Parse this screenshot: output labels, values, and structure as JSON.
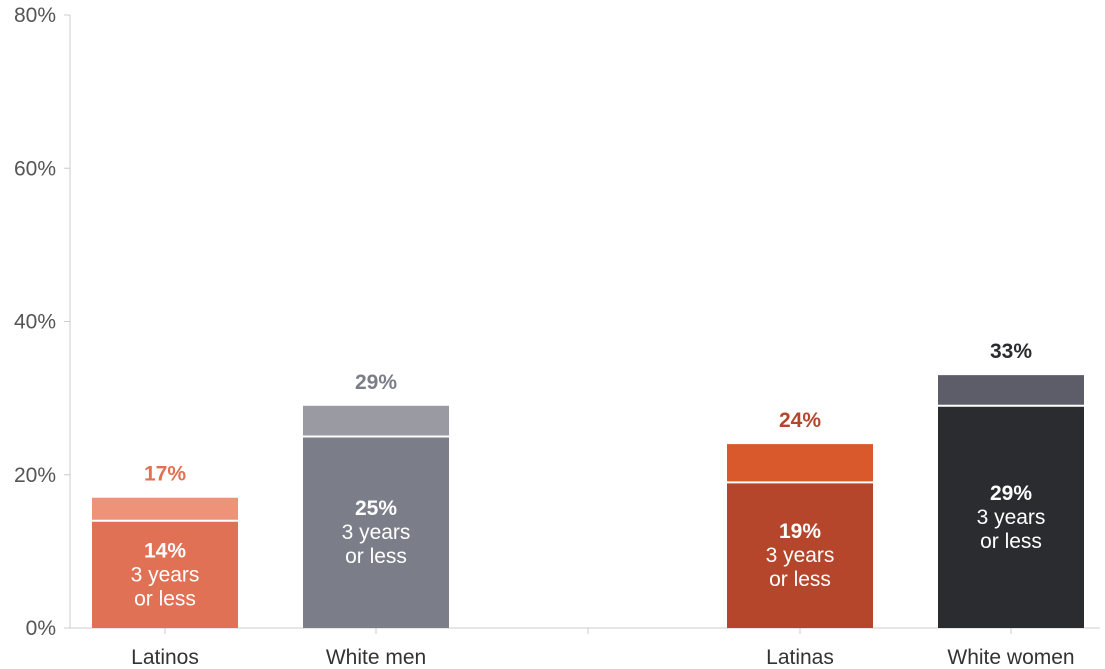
{
  "chart_data": {
    "type": "bar",
    "stacked": true,
    "categories": [
      "Latinos",
      "White men",
      "Latinas",
      "White women"
    ],
    "groups": [
      [
        "Latinos",
        "White men"
      ],
      [
        "Latinas",
        "White women"
      ]
    ],
    "series": [
      {
        "values": [
          14,
          25,
          19,
          29
        ]
      },
      {
        "values": [
          3,
          4,
          5,
          4
        ]
      }
    ],
    "totals": [
      17,
      29,
      24,
      33
    ],
    "total_labels": [
      "17%",
      "29%",
      "24%",
      "33%"
    ],
    "inner_value_labels": [
      "14%",
      "25%",
      "19%",
      "29%"
    ],
    "inner_text_line1": "3 years",
    "inner_text_line2": "or less",
    "ylim": [
      0,
      80
    ],
    "yticks": [
      0,
      20,
      40,
      60,
      80
    ],
    "ytick_labels": [
      "0%",
      "20%",
      "40%",
      "60%",
      "80%"
    ],
    "grid": false,
    "colors": {
      "bottom": [
        "#e07155",
        "#7b7d89",
        "#b5462b",
        "#2b2c30"
      ],
      "top": [
        "#ee9279",
        "#9a9ba2",
        "#d9582c",
        "#5c5d68"
      ],
      "total_text": [
        "#e07155",
        "#7b7d89",
        "#b5462b",
        "#2b2c30"
      ],
      "axis": "#cccccc"
    }
  }
}
